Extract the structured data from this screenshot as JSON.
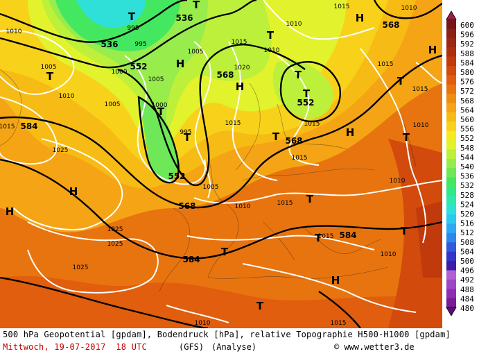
{
  "palette": [
    "#5a0e7c",
    "#7a1a94",
    "#8c2fb0",
    "#9e47c4",
    "#b060d0",
    "#3c1ca8",
    "#3434c8",
    "#2e5ae0",
    "#2f86ee",
    "#2fa8f4",
    "#2cc8f0",
    "#2ee0d8",
    "#2fe8b0",
    "#30e888",
    "#44e860",
    "#6ee858",
    "#98ec4c",
    "#bcf03a",
    "#e2f22c",
    "#f6ea20",
    "#f8d21a",
    "#f7bb16",
    "#f4a414",
    "#ef8c12",
    "#e8740f",
    "#e05e0d",
    "#d24a0c",
    "#c03a0c",
    "#ad2f0e",
    "#9a2812",
    "#8a2016",
    "#76161a",
    "#9c1e48"
  ],
  "legend": {
    "values": [
      "600",
      "596",
      "592",
      "588",
      "584",
      "580",
      "576",
      "572",
      "568",
      "564",
      "560",
      "556",
      "552",
      "548",
      "544",
      "540",
      "536",
      "532",
      "528",
      "524",
      "520",
      "516",
      "512",
      "508",
      "504",
      "500",
      "496",
      "492",
      "488",
      "484",
      "480"
    ]
  },
  "map": {
    "contours_geopotential": [
      "536",
      "552",
      "568",
      "584"
    ],
    "isobars": [
      "995",
      "1000",
      "1005",
      "1010",
      "1015",
      "1020",
      "1025"
    ],
    "high_symbol": "H",
    "low_symbol": "T"
  },
  "footer": {
    "line1": "500 hPa Geopotential [gpdam], Bodendruck [hPa], relative Topographie H500-H1000 [gpdam]",
    "date_line": "Mittwoch, 19-07-2017  18 UTC",
    "model": "(GFS)",
    "analysis": "(Analyse)",
    "credit": "© www.wetter3.de"
  }
}
